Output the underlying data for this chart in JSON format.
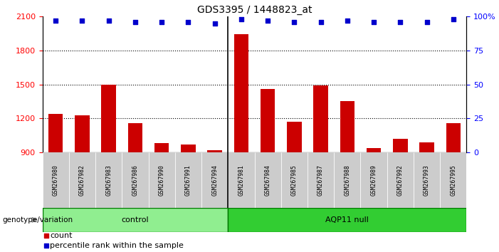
{
  "title": "GDS3395 / 1448823_at",
  "samples": [
    "GSM267980",
    "GSM267982",
    "GSM267983",
    "GSM267986",
    "GSM267990",
    "GSM267991",
    "GSM267994",
    "GSM267981",
    "GSM267984",
    "GSM267985",
    "GSM267987",
    "GSM267988",
    "GSM267989",
    "GSM267992",
    "GSM267993",
    "GSM267995"
  ],
  "counts": [
    1240,
    1230,
    1500,
    1160,
    980,
    970,
    920,
    1940,
    1460,
    1170,
    1490,
    1350,
    940,
    1020,
    990,
    1160
  ],
  "percentile_ranks": [
    97,
    97,
    97,
    96,
    96,
    96,
    95,
    98,
    97,
    96,
    96,
    97,
    96,
    96,
    96,
    98
  ],
  "bar_color": "#cc0000",
  "dot_color": "#0000cc",
  "ylim_left": [
    900,
    2100
  ],
  "ylim_right": [
    0,
    100
  ],
  "yticks_left": [
    900,
    1200,
    1500,
    1800,
    2100
  ],
  "yticks_right": [
    0,
    25,
    50,
    75,
    100
  ],
  "ytick_labels_right": [
    "0",
    "25",
    "50",
    "75",
    "100%"
  ],
  "control_count": 7,
  "aqp11_count": 9,
  "group_label_control": "control",
  "group_label_aqp11": "AQP11 null",
  "group_arrow_label": "genotype/variation",
  "legend_count_label": "count",
  "legend_percentile_label": "percentile rank within the sample",
  "background_color": "#ffffff",
  "xticklabel_bg": "#cccccc",
  "grid_color": "#000000",
  "bar_width": 0.55,
  "dot_size": 22,
  "control_color": "#90EE90",
  "aqp11_color": "#32CD32",
  "group_border_color": "#007700"
}
